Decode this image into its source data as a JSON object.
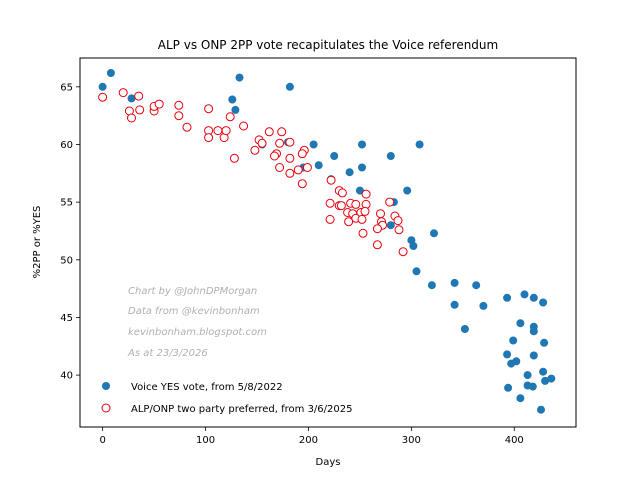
{
  "chart_data": {
    "type": "scatter",
    "title": "ALP vs ONP 2PP vote recapitulates the Voice referendum",
    "xlabel": "Days",
    "ylabel": "%2PP or %YES",
    "xlim": [
      -22,
      460
    ],
    "ylim": [
      35.5,
      67.5
    ],
    "xticks": [
      0,
      100,
      200,
      300,
      400
    ],
    "yticks": [
      40,
      45,
      50,
      55,
      60,
      65
    ],
    "grid": false,
    "legend_position": "lower-left",
    "annotations": [
      "Chart by @JohnDPMorgan",
      "Data from @kevinbonham",
      "kevinbonham.blogspot.com",
      "As at 23/3/2026"
    ],
    "series": [
      {
        "name": "Voice YES vote, from 5/8/2022",
        "marker": "filled-circle",
        "color": "#1f77b4",
        "points": [
          [
            0,
            65
          ],
          [
            8,
            66.2
          ],
          [
            28,
            64
          ],
          [
            126,
            63.9
          ],
          [
            129,
            63
          ],
          [
            133,
            65.8
          ],
          [
            182,
            65
          ],
          [
            155,
            60
          ],
          [
            180,
            60.2
          ],
          [
            205,
            60
          ],
          [
            195,
            58
          ],
          [
            210,
            58.2
          ],
          [
            225,
            59
          ],
          [
            240,
            57.6
          ],
          [
            252,
            60
          ],
          [
            252,
            58
          ],
          [
            222,
            57
          ],
          [
            250,
            56
          ],
          [
            254,
            54.2
          ],
          [
            280,
            59
          ],
          [
            283,
            55
          ],
          [
            308,
            60
          ],
          [
            296,
            56
          ],
          [
            280,
            53
          ],
          [
            300,
            51.7
          ],
          [
            302,
            51.2
          ],
          [
            322,
            52.3
          ],
          [
            305,
            49
          ],
          [
            320,
            47.8
          ],
          [
            342,
            48
          ],
          [
            342,
            46.1
          ],
          [
            363,
            47.8
          ],
          [
            370,
            46
          ],
          [
            352,
            44
          ],
          [
            393,
            46.7
          ],
          [
            410,
            47
          ],
          [
            419,
            46.7
          ],
          [
            428,
            46.3
          ],
          [
            406,
            44.5
          ],
          [
            419,
            44.2
          ],
          [
            419,
            43.8
          ],
          [
            399,
            43
          ],
          [
            429,
            42.8
          ],
          [
            393,
            41.8
          ],
          [
            397,
            41
          ],
          [
            402,
            41.2
          ],
          [
            419,
            41.7
          ],
          [
            413,
            40
          ],
          [
            428,
            40.3
          ],
          [
            394,
            38.9
          ],
          [
            413,
            39.1
          ],
          [
            418,
            39
          ],
          [
            430,
            39.5
          ],
          [
            436,
            39.7
          ],
          [
            406,
            38
          ],
          [
            426,
            37
          ]
        ]
      },
      {
        "name": "ALP/ONP two party preferred, from 3/6/2025",
        "marker": "hollow-circle",
        "color": "#e8000b",
        "points": [
          [
            0,
            64.1
          ],
          [
            20,
            64.5
          ],
          [
            35,
            64.2
          ],
          [
            26,
            62.9
          ],
          [
            28,
            62.3
          ],
          [
            36,
            63
          ],
          [
            50,
            62.9
          ],
          [
            50,
            63.3
          ],
          [
            55,
            63.5
          ],
          [
            74,
            63.4
          ],
          [
            74,
            62.5
          ],
          [
            103,
            63.1
          ],
          [
            82,
            61.5
          ],
          [
            103,
            61.2
          ],
          [
            112,
            61.2
          ],
          [
            103,
            60.6
          ],
          [
            118,
            60.6
          ],
          [
            120,
            61.2
          ],
          [
            124,
            62.4
          ],
          [
            137,
            61.6
          ],
          [
            148,
            59.5
          ],
          [
            152,
            60.4
          ],
          [
            155,
            60.1
          ],
          [
            162,
            61.1
          ],
          [
            174,
            61.1
          ],
          [
            182,
            60.2
          ],
          [
            172,
            60.1
          ],
          [
            169,
            59.2
          ],
          [
            167,
            59
          ],
          [
            196,
            59.5
          ],
          [
            194,
            59.2
          ],
          [
            182,
            58.8
          ],
          [
            172,
            58
          ],
          [
            190,
            57.8
          ],
          [
            199,
            58
          ],
          [
            182,
            57.5
          ],
          [
            194,
            56.6
          ],
          [
            128,
            58.8
          ],
          [
            222,
            56.9
          ],
          [
            230,
            56
          ],
          [
            233,
            55.8
          ],
          [
            221,
            54.9
          ],
          [
            230,
            54.7
          ],
          [
            232,
            54.7
          ],
          [
            241,
            54.9
          ],
          [
            238,
            54.1
          ],
          [
            246,
            54.8
          ],
          [
            243,
            54
          ],
          [
            246,
            53.6
          ],
          [
            256,
            55.7
          ],
          [
            256,
            54.8
          ],
          [
            251,
            54.1
          ],
          [
            255,
            54.2
          ],
          [
            270,
            54
          ],
          [
            279,
            55
          ],
          [
            221,
            53.5
          ],
          [
            239,
            53.3
          ],
          [
            252,
            53.5
          ],
          [
            271,
            53.3
          ],
          [
            272,
            53
          ],
          [
            284,
            53.8
          ],
          [
            287,
            53.4
          ],
          [
            288,
            52.6
          ],
          [
            253,
            52.3
          ],
          [
            267,
            52.7
          ],
          [
            267,
            51.3
          ],
          [
            292,
            50.7
          ]
        ]
      }
    ]
  }
}
